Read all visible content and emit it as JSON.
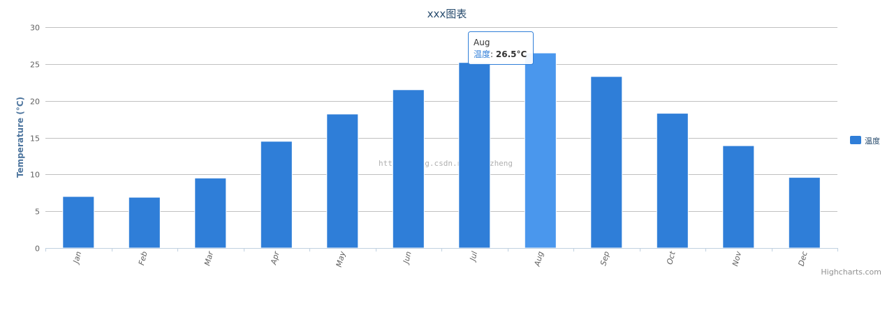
{
  "chart_data": {
    "type": "bar",
    "title": "xxx图表",
    "xlabel": "",
    "ylabel": "Temperature (°C)",
    "ylim": [
      0,
      30
    ],
    "yticks": [
      0,
      5,
      10,
      15,
      20,
      25,
      30
    ],
    "grid": true,
    "legend_position": "right",
    "categories": [
      "Jan",
      "Feb",
      "Mar",
      "Apr",
      "May",
      "Jun",
      "Jul",
      "Aug",
      "Sep",
      "Oct",
      "Nov",
      "Dec"
    ],
    "series": [
      {
        "name": "温度",
        "values": [
          7.0,
          6.9,
          9.5,
          14.5,
          18.2,
          21.5,
          25.2,
          26.5,
          23.3,
          18.3,
          13.9,
          9.6
        ],
        "color": "#2f7ed8"
      }
    ]
  },
  "tooltip": {
    "category": "Aug",
    "series_name": "温度",
    "separator": ": ",
    "value_text": "26.5°C"
  },
  "highlight_color": "#4a97ed",
  "watermark": "http://blog.csdn.net/vyuzheng",
  "credits": "Highcharts.com"
}
